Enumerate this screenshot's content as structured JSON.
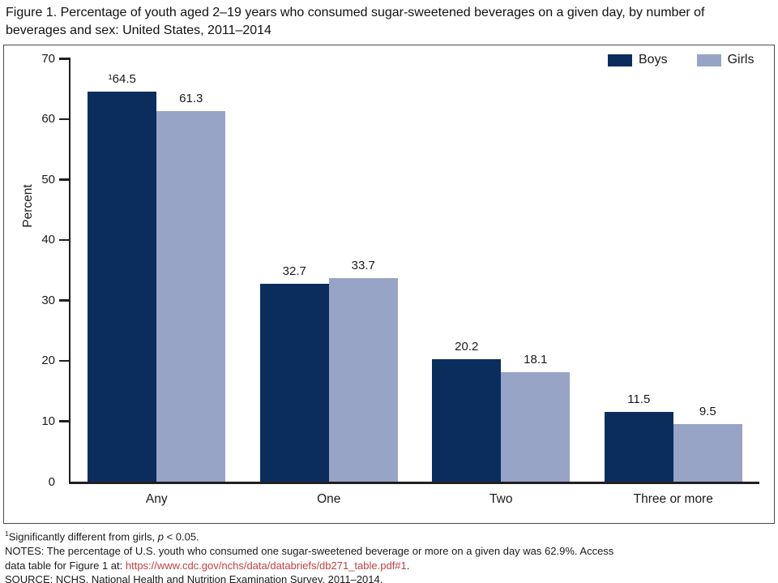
{
  "figure": {
    "title_line1": "Figure 1. Percentage of youth aged 2–19 years who consumed sugar-sweetened beverages on a given day, by number of",
    "title_line2": "beverages and sex: United States, 2011–2014"
  },
  "chart_data": {
    "type": "bar",
    "title": "Percentage of youth aged 2–19 years who consumed sugar-sweetened beverages on a given day, by number of beverages and sex: United States, 2011–2014",
    "categories": [
      "Any",
      "One",
      "Two",
      "Three or more"
    ],
    "series": [
      {
        "name": "Boys",
        "color": "#0b2d5e",
        "values": [
          64.5,
          32.7,
          20.2,
          11.5
        ],
        "value_labels": [
          "¹64.5",
          "32.7",
          "20.2",
          "11.5"
        ]
      },
      {
        "name": "Girls",
        "color": "#98a4c6",
        "values": [
          61.3,
          33.7,
          18.1,
          9.5
        ],
        "value_labels": [
          "61.3",
          "33.7",
          "18.1",
          "9.5"
        ]
      }
    ],
    "xlabel": "",
    "ylabel": "Percent",
    "ylim": [
      0,
      70
    ],
    "ytick_interval": 10,
    "grid": false,
    "legend_position": "top-right"
  },
  "footnotes": {
    "fn1_sup": "1",
    "fn1_pre": "Significantly different from girls, ",
    "fn1_italic": "p",
    "fn1_post": " < 0.05.",
    "notes_line1": "NOTES: The percentage of U.S. youth who consumed one sugar-sweetened beverage or more on a given day was 62.9%. Access",
    "notes_line2_pre": "data table for Figure 1 at: ",
    "notes_link": "https://www.cdc.gov/nchs/data/databriefs/db271_table.pdf#1",
    "notes_line2_post": ".",
    "source": "SOURCE: NCHS, National Health and Nutrition Examination Survey, 2011–2014."
  },
  "colors": {
    "boys": "#0b2d5e",
    "girls": "#98a4c6",
    "link_red": "#c04044",
    "axis": "#231f20"
  }
}
